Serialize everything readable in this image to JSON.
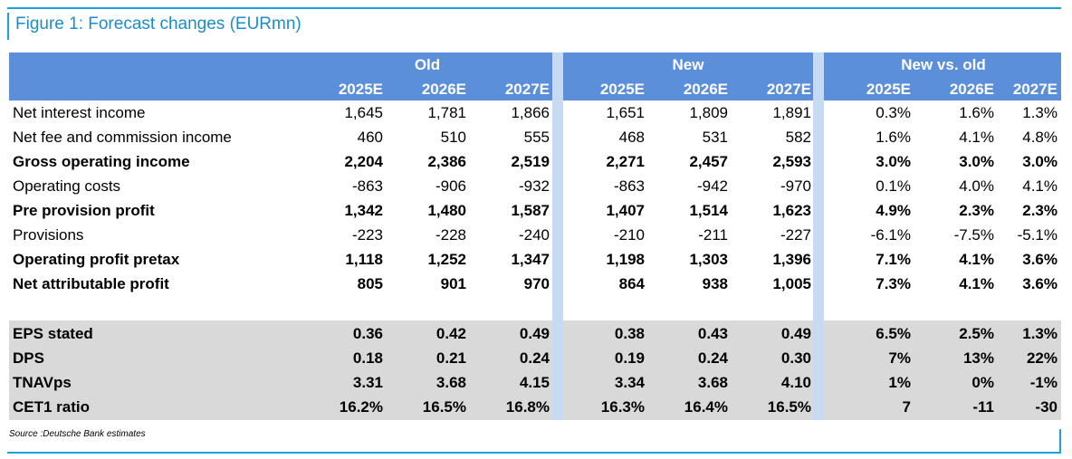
{
  "title": "Figure 1: Forecast changes (EURmn)",
  "groups": [
    "Old",
    "New",
    "New vs. old"
  ],
  "years": [
    "2025E",
    "2026E",
    "2027E"
  ],
  "colors": {
    "header": "#5b8fd9",
    "separator": "#c7daf3",
    "title": "#1c8dc8",
    "rule": "#1ea0d8",
    "band": "#d9d9d9"
  },
  "rows": [
    {
      "label": "Net interest income",
      "bold": false,
      "values": [
        "1,645",
        "1,781",
        "1,866",
        "1,651",
        "1,809",
        "1,891",
        "0.3%",
        "1.6%",
        "1.3%"
      ]
    },
    {
      "label": "Net fee and commission income",
      "bold": false,
      "values": [
        "460",
        "510",
        "555",
        "468",
        "531",
        "582",
        "1.6%",
        "4.1%",
        "4.8%"
      ]
    },
    {
      "label": "Gross operating income",
      "bold": true,
      "values": [
        "2,204",
        "2,386",
        "2,519",
        "2,271",
        "2,457",
        "2,593",
        "3.0%",
        "3.0%",
        "3.0%"
      ]
    },
    {
      "label": "Operating costs",
      "bold": false,
      "values": [
        "-863",
        "-906",
        "-932",
        "-863",
        "-942",
        "-970",
        "0.1%",
        "4.0%",
        "4.1%"
      ]
    },
    {
      "label": "Pre provision profit",
      "bold": true,
      "values": [
        "1,342",
        "1,480",
        "1,587",
        "1,407",
        "1,514",
        "1,623",
        "4.9%",
        "2.3%",
        "2.3%"
      ]
    },
    {
      "label": "Provisions",
      "bold": false,
      "values": [
        "-223",
        "-228",
        "-240",
        "-210",
        "-211",
        "-227",
        "-6.1%",
        "-7.5%",
        "-5.1%"
      ]
    },
    {
      "label": "Operating profit pretax",
      "bold": true,
      "values": [
        "1,118",
        "1,252",
        "1,347",
        "1,198",
        "1,303",
        "1,396",
        "7.1%",
        "4.1%",
        "3.6%"
      ]
    },
    {
      "label": "Net attributable profit",
      "bold": true,
      "values": [
        "805",
        "901",
        "970",
        "864",
        "938",
        "1,005",
        "7.3%",
        "4.1%",
        "3.6%"
      ]
    }
  ],
  "per_share_rows": [
    {
      "label": "EPS stated",
      "bold": true,
      "values": [
        "0.36",
        "0.42",
        "0.49",
        "0.38",
        "0.43",
        "0.49",
        "6.5%",
        "2.5%",
        "1.3%"
      ]
    },
    {
      "label": "DPS",
      "bold": true,
      "values": [
        "0.18",
        "0.21",
        "0.24",
        "0.19",
        "0.24",
        "0.30",
        "7%",
        "13%",
        "22%"
      ]
    },
    {
      "label": "TNAVps",
      "bold": true,
      "values": [
        "3.31",
        "3.68",
        "4.15",
        "3.34",
        "3.68",
        "4.10",
        "1%",
        "0%",
        "-1%"
      ]
    },
    {
      "label": "CET1 ratio",
      "bold": true,
      "values": [
        "16.2%",
        "16.5%",
        "16.8%",
        "16.3%",
        "16.4%",
        "16.5%",
        "7",
        "-11",
        "-30"
      ]
    }
  ],
  "source": "Source :Deutsche Bank estimates"
}
